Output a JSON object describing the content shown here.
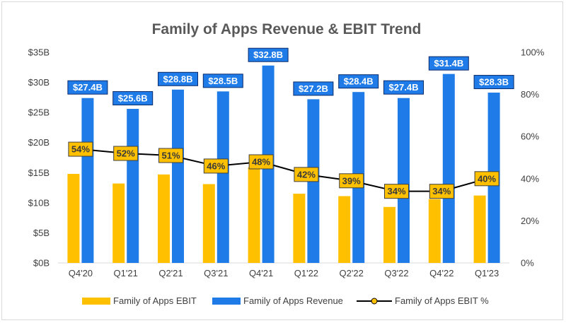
{
  "chart_data": {
    "type": "bar",
    "title": "Family of Apps Revenue & EBIT Trend",
    "categories": [
      "Q4'20",
      "Q1'21",
      "Q2'21",
      "Q3'21",
      "Q4'21",
      "Q1'22",
      "Q2'22",
      "Q3'22",
      "Q4'22",
      "Q1'23"
    ],
    "series": [
      {
        "name": "Family of Apps EBIT",
        "kind": "bar",
        "axis": "left",
        "color": "#FFC000",
        "values": [
          14.8,
          13.2,
          14.7,
          13.1,
          15.9,
          11.5,
          11.1,
          9.3,
          10.6,
          11.2
        ]
      },
      {
        "name": "Family of Apps Revenue",
        "kind": "bar",
        "axis": "left",
        "color": "#1F7BE8",
        "values": [
          27.4,
          25.6,
          28.8,
          28.5,
          32.8,
          27.2,
          28.4,
          27.4,
          31.4,
          28.3
        ],
        "labels": [
          "$27.4B",
          "$25.6B",
          "$28.8B",
          "$28.5B",
          "$32.8B",
          "$27.2B",
          "$28.4B",
          "$27.4B",
          "$31.4B",
          "$28.3B"
        ]
      },
      {
        "name": "Family of Apps EBIT %",
        "kind": "line",
        "axis": "right",
        "color": "#000000",
        "marker_color": "#FFC000",
        "values": [
          54,
          52,
          51,
          46,
          48,
          42,
          39,
          34,
          34,
          40
        ],
        "labels": [
          "54%",
          "52%",
          "51%",
          "46%",
          "48%",
          "42%",
          "39%",
          "34%",
          "34%",
          "40%"
        ]
      }
    ],
    "y_left": {
      "lim": [
        0,
        35
      ],
      "ticks": [
        0,
        5,
        10,
        15,
        20,
        25,
        30,
        35
      ],
      "tick_labels": [
        "$0B",
        "$5B",
        "$10B",
        "$15B",
        "$20B",
        "$25B",
        "$30B",
        "$35B"
      ]
    },
    "y_right": {
      "lim": [
        0,
        100
      ],
      "ticks": [
        0,
        20,
        40,
        60,
        80,
        100
      ],
      "tick_labels": [
        "0%",
        "20%",
        "40%",
        "60%",
        "80%",
        "100%"
      ]
    },
    "legend_position": "bottom",
    "grid": false
  }
}
